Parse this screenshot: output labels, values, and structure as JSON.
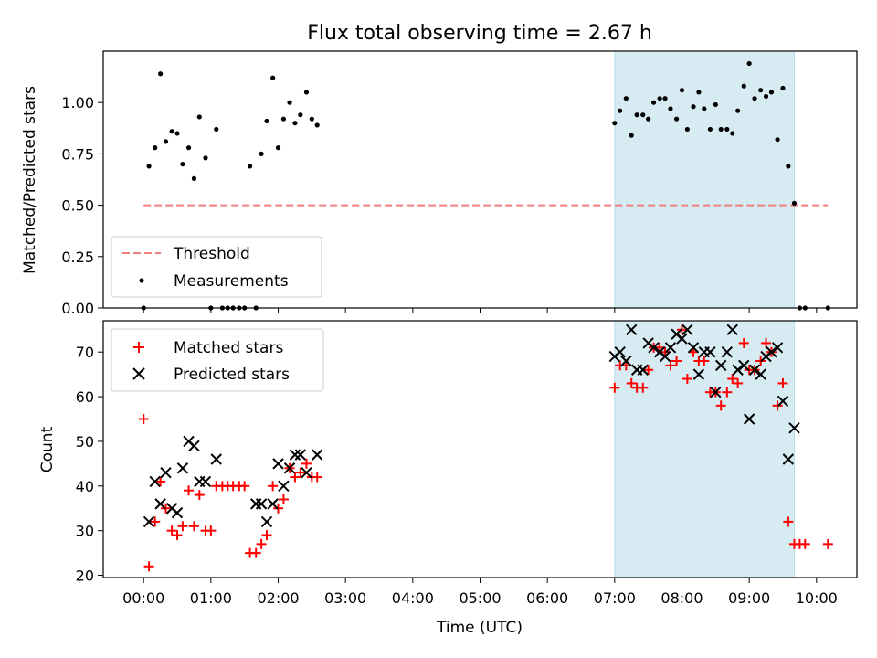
{
  "chart_data": [
    {
      "type": "scatter",
      "title": "Flux total observing time = 2.67 h",
      "xlabel": "",
      "ylabel": "Matched/Predicted stars",
      "xlim": [
        -0.6,
        10.6
      ],
      "ylim": [
        0,
        1.25
      ],
      "yticks": [
        "0.00",
        "0.25",
        "0.50",
        "0.75",
        "1.00"
      ],
      "grid": false,
      "legend_position": "lower-left",
      "shaded_region": {
        "x_start": 7.0,
        "x_end": 9.67,
        "color": "#add8e6"
      },
      "series": [
        {
          "name": "Threshold",
          "kind": "dashed-line",
          "color": "#f08080",
          "x": [
            0.0,
            10.17
          ],
          "y": [
            0.5,
            0.5
          ]
        },
        {
          "name": "Measurements",
          "kind": "dot",
          "color": "#000000",
          "x": [
            0.0,
            0.08,
            0.17,
            0.25,
            0.33,
            0.42,
            0.5,
            0.58,
            0.67,
            0.75,
            0.83,
            0.92,
            1.0,
            1.08,
            1.17,
            1.25,
            1.33,
            1.42,
            1.5,
            1.58,
            1.67,
            1.75,
            1.83,
            1.92,
            2.0,
            2.08,
            2.17,
            2.25,
            2.33,
            2.42,
            2.5,
            2.58,
            7.0,
            7.08,
            7.17,
            7.25,
            7.33,
            7.42,
            7.5,
            7.58,
            7.67,
            7.75,
            7.83,
            7.92,
            8.0,
            8.08,
            8.17,
            8.25,
            8.33,
            8.42,
            8.5,
            8.58,
            8.67,
            8.75,
            8.83,
            8.92,
            9.0,
            9.08,
            9.17,
            9.25,
            9.33,
            9.42,
            9.5,
            9.58,
            9.67,
            9.75,
            9.83,
            10.17
          ],
          "y": [
            0.0,
            0.69,
            0.78,
            1.14,
            0.81,
            0.86,
            0.85,
            0.7,
            0.78,
            0.63,
            0.93,
            0.73,
            0.0,
            0.87,
            0.0,
            0.0,
            0.0,
            0.0,
            0.0,
            0.69,
            0.0,
            0.75,
            0.91,
            1.12,
            0.78,
            0.92,
            1.0,
            0.9,
            0.94,
            1.05,
            0.92,
            0.89,
            0.9,
            0.96,
            1.02,
            0.84,
            0.94,
            0.94,
            0.92,
            1.0,
            1.02,
            1.02,
            0.97,
            0.92,
            1.06,
            0.87,
            0.98,
            1.05,
            0.97,
            0.87,
            0.99,
            0.87,
            0.87,
            0.85,
            0.96,
            1.08,
            1.19,
            1.02,
            1.06,
            1.03,
            1.05,
            0.82,
            1.07,
            0.69,
            0.51,
            0.0,
            0.0,
            0.0
          ]
        }
      ]
    },
    {
      "type": "scatter",
      "title": "",
      "xlabel": "Time (UTC)",
      "ylabel": "Count",
      "xlim": [
        -0.6,
        10.6
      ],
      "ylim": [
        19.5,
        77
      ],
      "yticks": [
        "20",
        "30",
        "40",
        "50",
        "60",
        "70"
      ],
      "xticks": [
        "00:00",
        "01:00",
        "02:00",
        "03:00",
        "04:00",
        "05:00",
        "06:00",
        "07:00",
        "08:00",
        "09:00",
        "10:00"
      ],
      "grid": false,
      "legend_position": "upper-left",
      "shaded_region": {
        "x_start": 7.0,
        "x_end": 9.67,
        "color": "#add8e6"
      },
      "series": [
        {
          "name": "Matched stars",
          "kind": "plus",
          "color": "#ff0000",
          "x": [
            0.0,
            0.08,
            0.17,
            0.25,
            0.33,
            0.42,
            0.5,
            0.58,
            0.67,
            0.75,
            0.83,
            0.92,
            1.0,
            1.08,
            1.17,
            1.25,
            1.33,
            1.42,
            1.5,
            1.58,
            1.67,
            1.75,
            1.83,
            1.92,
            2.0,
            2.08,
            2.17,
            2.25,
            2.33,
            2.42,
            2.5,
            2.58,
            7.0,
            7.08,
            7.17,
            7.25,
            7.33,
            7.42,
            7.5,
            7.58,
            7.67,
            7.75,
            7.83,
            7.92,
            8.0,
            8.08,
            8.17,
            8.25,
            8.33,
            8.42,
            8.5,
            8.58,
            8.67,
            8.75,
            8.83,
            8.92,
            9.0,
            9.08,
            9.17,
            9.25,
            9.33,
            9.42,
            9.5,
            9.58,
            9.67,
            9.75,
            9.83,
            10.17
          ],
          "y": [
            55,
            22,
            32,
            41,
            35,
            30,
            29,
            31,
            39,
            31,
            38,
            30,
            30,
            40,
            40,
            40,
            40,
            40,
            40,
            25,
            25,
            27,
            29,
            40,
            35,
            37,
            44,
            42,
            43,
            45,
            42,
            42,
            62,
            67,
            67,
            63,
            62,
            62,
            66,
            71,
            71,
            70,
            67,
            68,
            75,
            64,
            70,
            68,
            68,
            61,
            61,
            58,
            61,
            64,
            63,
            72,
            66,
            66,
            68,
            72,
            70,
            58,
            63,
            32,
            27,
            27,
            27,
            27
          ]
        },
        {
          "name": "Predicted stars",
          "kind": "cross",
          "color": "#000000",
          "x": [
            0.08,
            0.17,
            0.25,
            0.33,
            0.42,
            0.5,
            0.58,
            0.67,
            0.75,
            0.83,
            0.92,
            1.08,
            1.67,
            1.75,
            1.83,
            1.92,
            2.0,
            2.08,
            2.17,
            2.25,
            2.33,
            2.42,
            2.58,
            7.0,
            7.08,
            7.17,
            7.25,
            7.33,
            7.42,
            7.5,
            7.58,
            7.67,
            7.75,
            7.83,
            7.92,
            8.0,
            8.08,
            8.17,
            8.25,
            8.33,
            8.42,
            8.5,
            8.58,
            8.67,
            8.75,
            8.83,
            8.92,
            9.0,
            9.08,
            9.17,
            9.25,
            9.33,
            9.42,
            9.5,
            9.58,
            9.67
          ],
          "y": [
            32,
            41,
            36,
            43,
            35,
            34,
            44,
            50,
            49,
            41,
            41,
            46,
            36,
            36,
            32,
            36,
            45,
            40,
            44,
            47,
            47,
            43,
            47,
            69,
            70,
            68,
            75,
            66,
            66,
            72,
            71,
            70,
            69,
            71,
            74,
            73,
            75,
            71,
            65,
            70,
            70,
            61,
            67,
            70,
            75,
            66,
            67,
            55,
            66,
            65,
            69,
            70,
            71,
            59,
            46,
            53
          ]
        }
      ]
    }
  ]
}
